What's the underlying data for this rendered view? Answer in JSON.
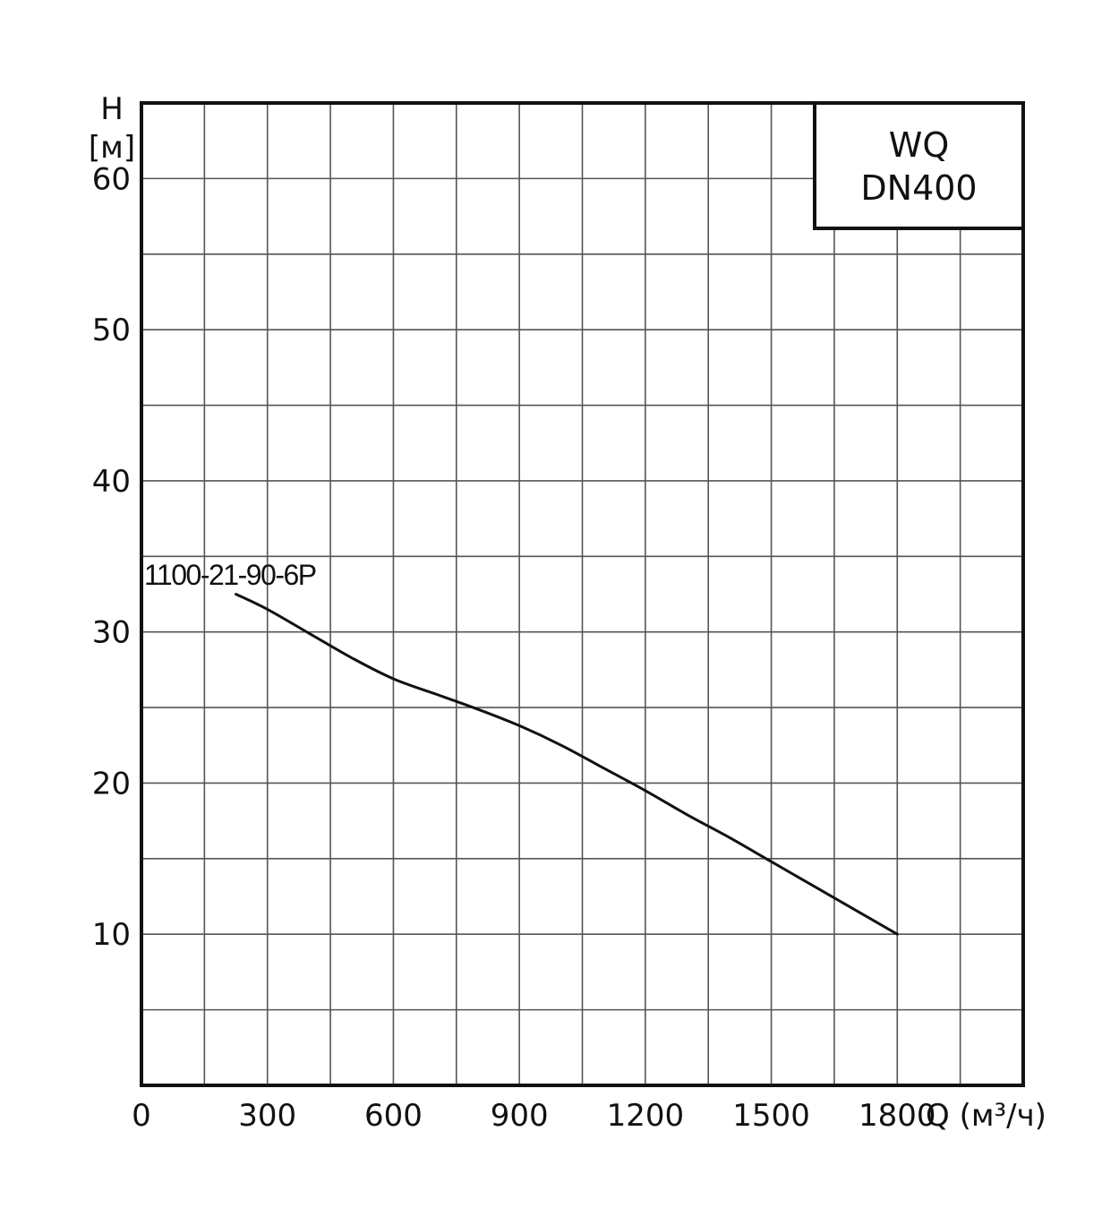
{
  "chart_data": {
    "type": "line",
    "title": "",
    "legend_box": {
      "line1": "WQ",
      "line2": "DN400",
      "placement": "top-right"
    },
    "xlabel": "Q (м³/ч)",
    "ylabel": {
      "line1": "H",
      "line2": "[м]"
    },
    "xlim": [
      0,
      2100
    ],
    "ylim": [
      0,
      65
    ],
    "grid": true,
    "x_grid_step": 150,
    "y_grid_step": 5,
    "x_ticks": [
      {
        "value": 0,
        "label": "0"
      },
      {
        "value": 300,
        "label": "300"
      },
      {
        "value": 600,
        "label": "600"
      },
      {
        "value": 900,
        "label": "900"
      },
      {
        "value": 1200,
        "label": "1200"
      },
      {
        "value": 1500,
        "label": "1500"
      },
      {
        "value": 1800,
        "label": "1800"
      }
    ],
    "y_ticks": [
      {
        "value": 10,
        "label": "10"
      },
      {
        "value": 20,
        "label": "20"
      },
      {
        "value": 30,
        "label": "30"
      },
      {
        "value": 40,
        "label": "40"
      },
      {
        "value": 50,
        "label": "50"
      },
      {
        "value": 60,
        "label": "60"
      }
    ],
    "series": [
      {
        "name": "1100-21-90-6P",
        "x": [
          225,
          300,
          400,
          500,
          600,
          700,
          800,
          900,
          1000,
          1100,
          1200,
          1300,
          1400,
          1500,
          1600,
          1700,
          1800
        ],
        "y": [
          32.5,
          31.5,
          29.9,
          28.3,
          26.9,
          25.9,
          24.9,
          23.8,
          22.5,
          21.0,
          19.5,
          17.9,
          16.4,
          14.8,
          13.2,
          11.6,
          10.0
        ]
      }
    ]
  }
}
